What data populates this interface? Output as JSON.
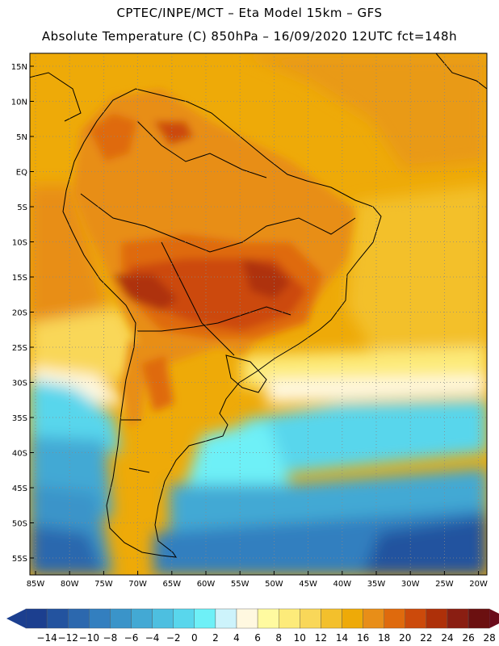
{
  "header": {
    "line1": "CPTEC/INPE/MCT –  Eta Model 15km – GFS",
    "line2": "Absolute Temperature (C) 850hPa – 16/09/2020 12UTC fct=148h"
  },
  "map": {
    "lat_labels": [
      "15N",
      "10N",
      "5N",
      "EQ",
      "5S",
      "10S",
      "15S",
      "20S",
      "25S",
      "30S",
      "35S",
      "40S",
      "45S",
      "50S",
      "55S"
    ],
    "lon_labels": [
      "85W",
      "80W",
      "75W",
      "70W",
      "65W",
      "60W",
      "55W",
      "50W",
      "45W",
      "40W",
      "35W",
      "30W",
      "25W",
      "20W"
    ],
    "gridlines": "dotted"
  },
  "colorbar": {
    "labels": [
      "-14",
      "-12",
      "-10",
      "-8",
      "-6",
      "-4",
      "-2",
      "0",
      "2",
      "4",
      "6",
      "8",
      "10",
      "12",
      "14",
      "16",
      "18",
      "20",
      "22",
      "24",
      "26",
      "28"
    ],
    "colors": [
      "#1c3f8f",
      "#23539f",
      "#2c68ae",
      "#337fbf",
      "#3a94c9",
      "#43a9d4",
      "#4dbfe0",
      "#59d6ec",
      "#6ef0f7",
      "#cdf3fb",
      "#fff8e0",
      "#fffaa0",
      "#fdeb7a",
      "#f9d759",
      "#f3c02c",
      "#eeaa08",
      "#e88e18",
      "#df6a0d",
      "#cc4a0b",
      "#ae3009",
      "#8a1e12",
      "#6b1010"
    ],
    "min_color": "#1c3f8f",
    "max_color": "#6b0b1a"
  }
}
